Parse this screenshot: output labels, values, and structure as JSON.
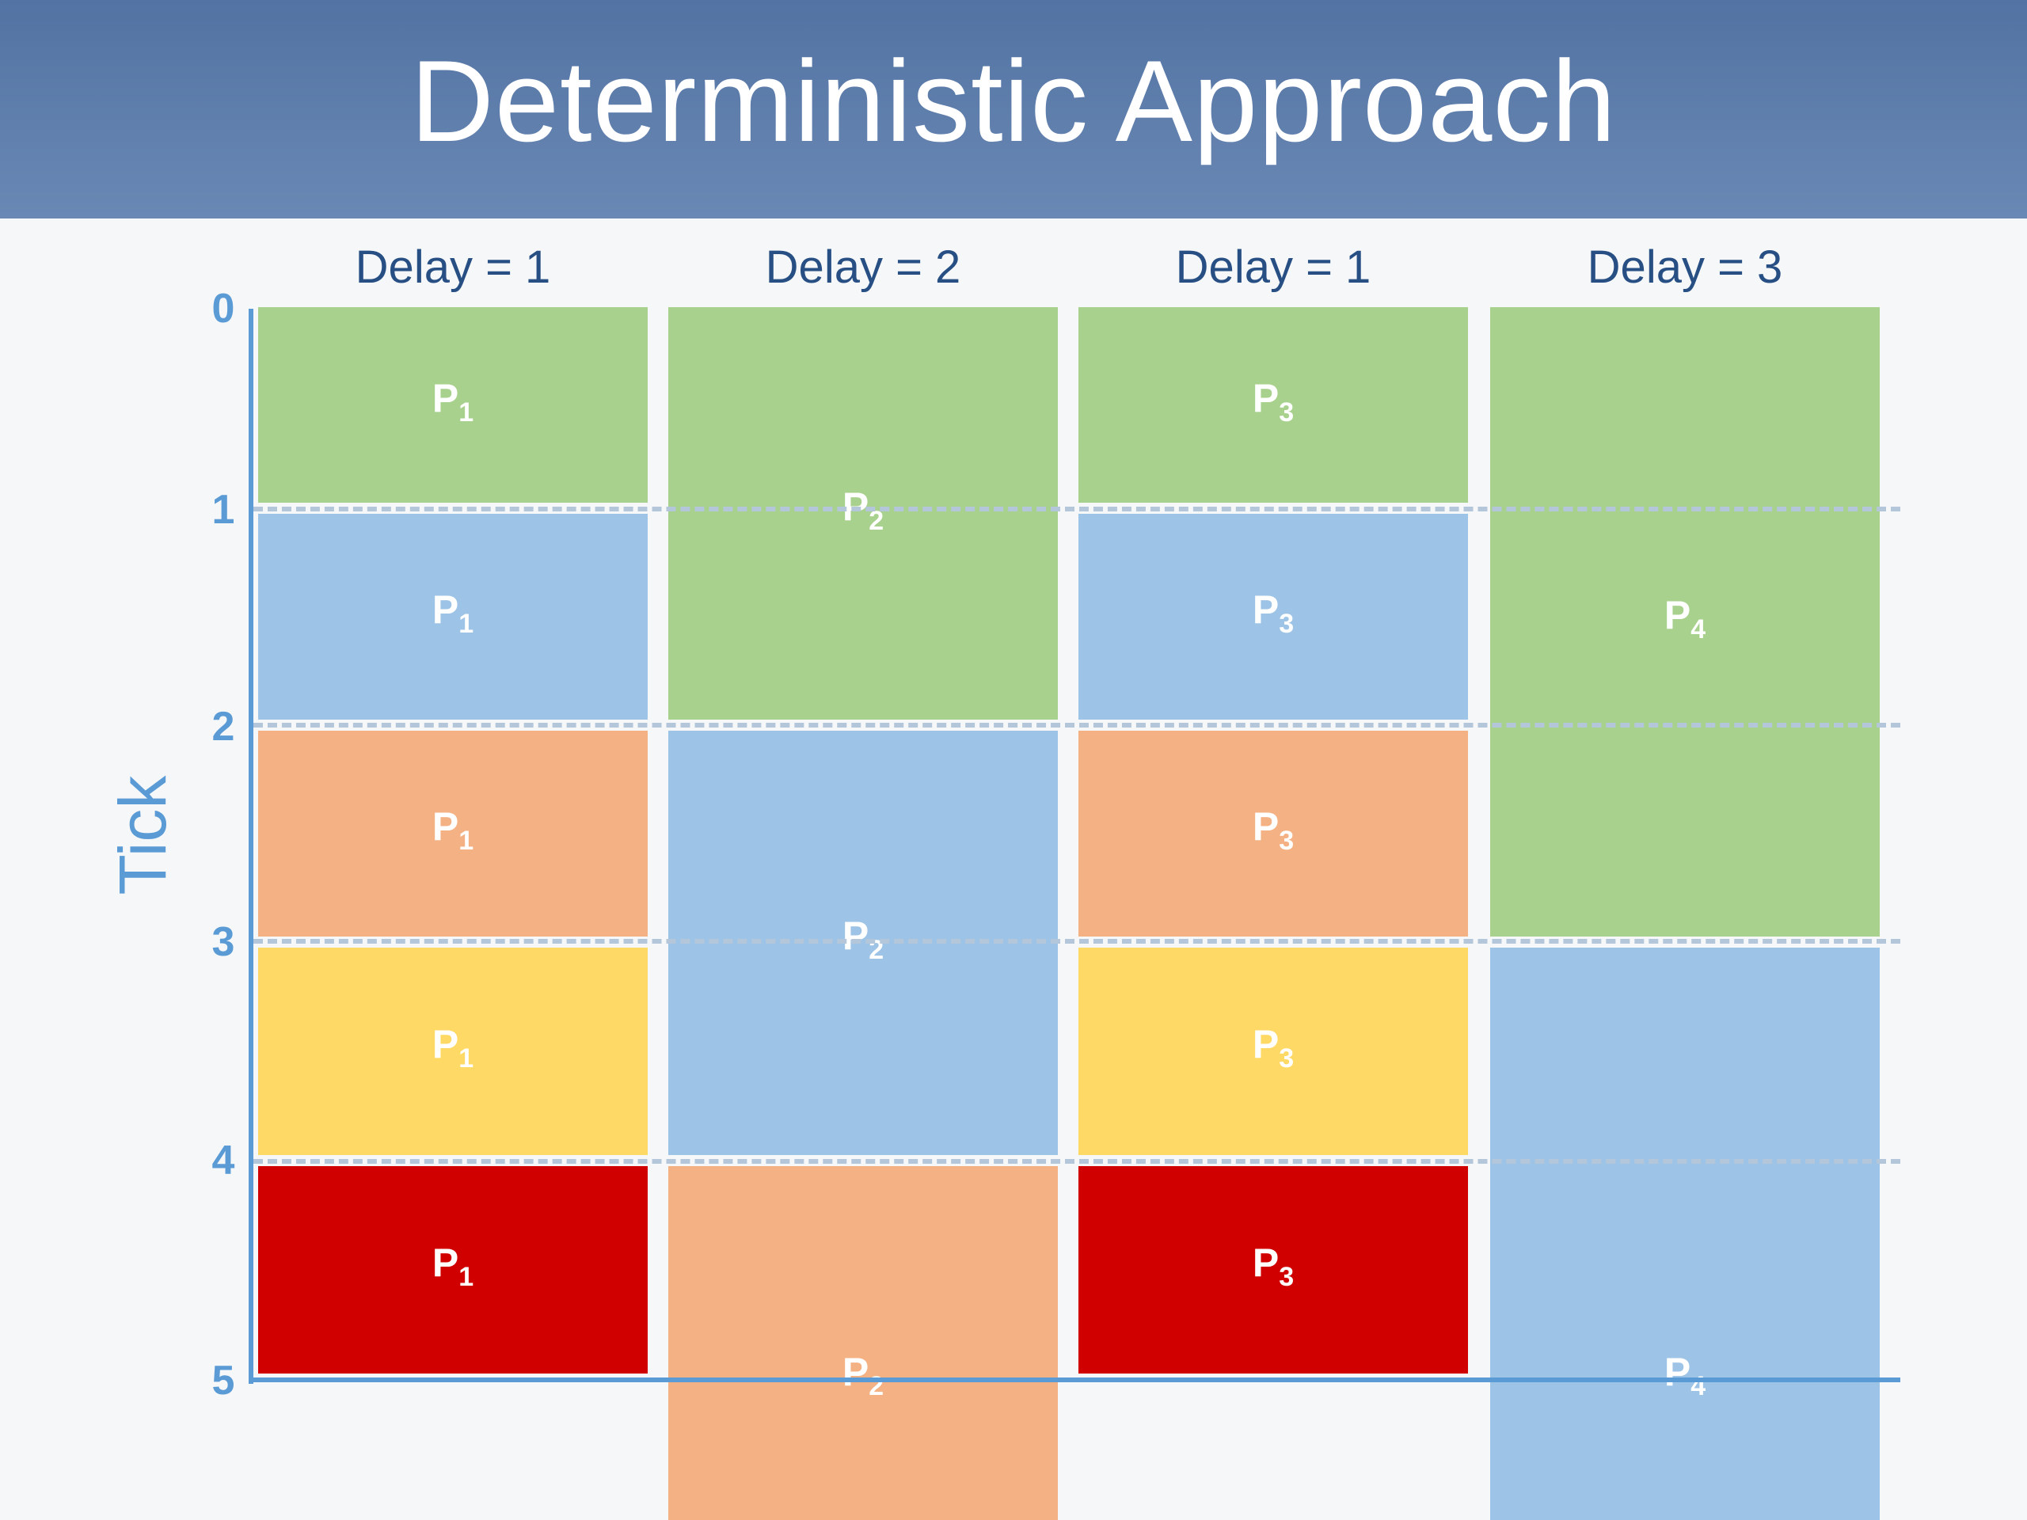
{
  "slide": {
    "title": "Deterministic Approach",
    "axis_label": "Tick"
  },
  "ticks": [
    "0",
    "1",
    "2",
    "3",
    "4",
    "5"
  ],
  "colors": {
    "tick1": "#a9d18e",
    "tick2": "#9dc3e6",
    "tick3": "#f4b183",
    "tick4": "#ffd966",
    "tick5": "#d00000",
    "axis": "#5b9bd5",
    "gridline": "#b4c7da",
    "title_bar": "#5a78a8",
    "header_text": "#274f84"
  },
  "columns": [
    {
      "header": "Delay = 1",
      "blocks": [
        {
          "process": "P",
          "sub": "1",
          "start": 0,
          "duration": 1,
          "color": "#a9d18e"
        },
        {
          "process": "P",
          "sub": "1",
          "start": 1,
          "duration": 1,
          "color": "#9dc3e6"
        },
        {
          "process": "P",
          "sub": "1",
          "start": 2,
          "duration": 1,
          "color": "#f4b183"
        },
        {
          "process": "P",
          "sub": "1",
          "start": 3,
          "duration": 1,
          "color": "#ffd966"
        },
        {
          "process": "P",
          "sub": "1",
          "start": 4,
          "duration": 1,
          "color": "#d00000"
        }
      ]
    },
    {
      "header": "Delay = 2",
      "blocks": [
        {
          "process": "P",
          "sub": "2",
          "start": 0,
          "duration": 2,
          "color": "#a9d18e"
        },
        {
          "process": "P",
          "sub": "2",
          "start": 2,
          "duration": 2,
          "color": "#9dc3e6"
        },
        {
          "process": "P",
          "sub": "2",
          "start": 4,
          "duration": 2,
          "color": "#f4b183"
        }
      ]
    },
    {
      "header": "Delay = 1",
      "blocks": [
        {
          "process": "P",
          "sub": "3",
          "start": 0,
          "duration": 1,
          "color": "#a9d18e"
        },
        {
          "process": "P",
          "sub": "3",
          "start": 1,
          "duration": 1,
          "color": "#9dc3e6"
        },
        {
          "process": "P",
          "sub": "3",
          "start": 2,
          "duration": 1,
          "color": "#f4b183"
        },
        {
          "process": "P",
          "sub": "3",
          "start": 3,
          "duration": 1,
          "color": "#ffd966"
        },
        {
          "process": "P",
          "sub": "3",
          "start": 4,
          "duration": 1,
          "color": "#d00000"
        }
      ]
    },
    {
      "header": "Delay = 3",
      "blocks": [
        {
          "process": "P",
          "sub": "4",
          "start": 0,
          "duration": 3,
          "color": "#a9d18e"
        },
        {
          "process": "P",
          "sub": "4",
          "start": 3,
          "duration": 3,
          "color": "#9dc3e6"
        }
      ]
    }
  ]
}
